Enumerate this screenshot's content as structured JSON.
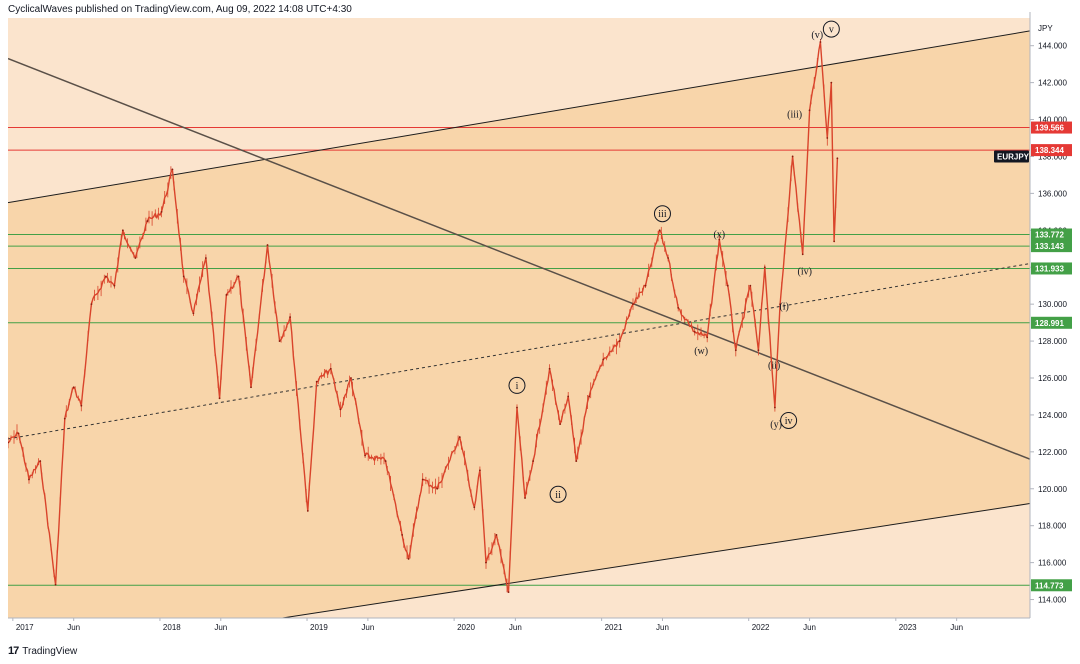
{
  "header": {
    "publisher": "CyclicalWaves published on TradingView.com, Aug 09, 2022 14:08 UTC+4:30"
  },
  "footer": {
    "brand": "TradingView",
    "logo_icon": "tradingview-logo-icon"
  },
  "chart_data": {
    "type": "line",
    "title": "",
    "symbol": "EURJPY",
    "currency_label": "JPY",
    "xlabel": "",
    "ylabel": "",
    "ylim": [
      113,
      145.5
    ],
    "x_range": [
      "2016-12-20",
      "2023-11-30"
    ],
    "x_ticks": [
      {
        "label": "2017",
        "date": "2017-01-01"
      },
      {
        "label": "Jun",
        "date": "2017-06-01"
      },
      {
        "label": "2018",
        "date": "2018-01-01"
      },
      {
        "label": "Jun",
        "date": "2018-06-01"
      },
      {
        "label": "2019",
        "date": "2019-01-01"
      },
      {
        "label": "Jun",
        "date": "2019-06-01"
      },
      {
        "label": "2020",
        "date": "2020-01-01"
      },
      {
        "label": "Jun",
        "date": "2020-06-01"
      },
      {
        "label": "2021",
        "date": "2021-01-01"
      },
      {
        "label": "Jun",
        "date": "2021-06-01"
      },
      {
        "label": "2022",
        "date": "2022-01-01"
      },
      {
        "label": "Jun",
        "date": "2022-06-01"
      },
      {
        "label": "2023",
        "date": "2023-01-01"
      },
      {
        "label": "Jun",
        "date": "2023-06-01"
      }
    ],
    "y_ticks": [
      "114.000",
      "116.000",
      "118.000",
      "120.000",
      "122.000",
      "124.000",
      "126.000",
      "128.000",
      "130.000",
      "132.000",
      "134.000",
      "136.000",
      "138.000",
      "140.000",
      "142.000",
      "144.000"
    ],
    "y_tick_values": [
      114,
      116,
      118,
      120,
      122,
      124,
      126,
      128,
      130,
      132,
      134,
      136,
      138,
      140,
      142,
      144
    ],
    "series": [
      {
        "name": "EURJPY",
        "color": "#d9442b",
        "points": [
          {
            "date": "2016-12-20",
            "y": 122.5
          },
          {
            "date": "2017-01-15",
            "y": 123.0
          },
          {
            "date": "2017-02-10",
            "y": 120.5
          },
          {
            "date": "2017-03-10",
            "y": 121.5
          },
          {
            "date": "2017-04-17",
            "y": 114.8
          },
          {
            "date": "2017-05-10",
            "y": 123.8
          },
          {
            "date": "2017-06-01",
            "y": 125.5
          },
          {
            "date": "2017-06-20",
            "y": 124.5
          },
          {
            "date": "2017-07-15",
            "y": 130.0
          },
          {
            "date": "2017-08-20",
            "y": 131.5
          },
          {
            "date": "2017-09-10",
            "y": 131.0
          },
          {
            "date": "2017-10-01",
            "y": 134.0
          },
          {
            "date": "2017-11-01",
            "y": 132.5
          },
          {
            "date": "2017-12-01",
            "y": 134.5
          },
          {
            "date": "2018-01-05",
            "y": 135.0
          },
          {
            "date": "2018-02-01",
            "y": 137.3
          },
          {
            "date": "2018-03-01",
            "y": 131.5
          },
          {
            "date": "2018-03-25",
            "y": 129.5
          },
          {
            "date": "2018-04-25",
            "y": 132.5
          },
          {
            "date": "2018-05-29",
            "y": 124.9
          },
          {
            "date": "2018-06-15",
            "y": 130.5
          },
          {
            "date": "2018-07-15",
            "y": 131.5
          },
          {
            "date": "2018-08-15",
            "y": 125.5
          },
          {
            "date": "2018-09-25",
            "y": 133.2
          },
          {
            "date": "2018-10-25",
            "y": 128.0
          },
          {
            "date": "2018-11-20",
            "y": 129.3
          },
          {
            "date": "2019-01-03",
            "y": 118.8
          },
          {
            "date": "2019-01-25",
            "y": 125.8
          },
          {
            "date": "2019-03-01",
            "y": 126.5
          },
          {
            "date": "2019-03-25",
            "y": 124.3
          },
          {
            "date": "2019-04-20",
            "y": 126.0
          },
          {
            "date": "2019-05-25",
            "y": 121.8
          },
          {
            "date": "2019-07-15",
            "y": 121.5
          },
          {
            "date": "2019-08-25",
            "y": 117.5
          },
          {
            "date": "2019-09-10",
            "y": 116.2
          },
          {
            "date": "2019-10-15",
            "y": 120.5
          },
          {
            "date": "2019-11-20",
            "y": 120.0
          },
          {
            "date": "2020-01-15",
            "y": 122.8
          },
          {
            "date": "2020-02-20",
            "y": 119.0
          },
          {
            "date": "2020-03-05",
            "y": 121.0
          },
          {
            "date": "2020-03-20",
            "y": 116.0
          },
          {
            "date": "2020-04-15",
            "y": 117.5
          },
          {
            "date": "2020-05-15",
            "y": 114.4
          },
          {
            "date": "2020-06-05",
            "y": 124.4
          },
          {
            "date": "2020-06-25",
            "y": 119.5
          },
          {
            "date": "2020-07-15",
            "y": 121.5
          },
          {
            "date": "2020-08-25",
            "y": 126.5
          },
          {
            "date": "2020-09-20",
            "y": 123.5
          },
          {
            "date": "2020-10-10",
            "y": 125.0
          },
          {
            "date": "2020-10-30",
            "y": 121.5
          },
          {
            "date": "2020-12-01",
            "y": 125.0
          },
          {
            "date": "2021-01-05",
            "y": 127.0
          },
          {
            "date": "2021-02-15",
            "y": 128.0
          },
          {
            "date": "2021-03-20",
            "y": 130.0
          },
          {
            "date": "2021-04-20",
            "y": 131.0
          },
          {
            "date": "2021-05-25",
            "y": 134.0
          },
          {
            "date": "2021-06-15",
            "y": 132.5
          },
          {
            "date": "2021-07-10",
            "y": 129.8
          },
          {
            "date": "2021-08-20",
            "y": 128.5
          },
          {
            "date": "2021-09-20",
            "y": 128.2
          },
          {
            "date": "2021-10-20",
            "y": 133.5
          },
          {
            "date": "2021-11-10",
            "y": 131.0
          },
          {
            "date": "2021-11-30",
            "y": 127.5
          },
          {
            "date": "2022-01-05",
            "y": 131.0
          },
          {
            "date": "2022-01-25",
            "y": 127.5
          },
          {
            "date": "2022-02-10",
            "y": 132.0
          },
          {
            "date": "2022-03-07",
            "y": 124.4
          },
          {
            "date": "2022-03-20",
            "y": 130.0
          },
          {
            "date": "2022-04-20",
            "y": 138.0
          },
          {
            "date": "2022-05-15",
            "y": 132.7
          },
          {
            "date": "2022-06-01",
            "y": 140.5
          },
          {
            "date": "2022-06-28",
            "y": 144.2
          },
          {
            "date": "2022-07-15",
            "y": 139.0
          },
          {
            "date": "2022-07-25",
            "y": 142.0
          },
          {
            "date": "2022-08-01",
            "y": 133.4
          },
          {
            "date": "2022-08-09",
            "y": 137.9
          }
        ]
      }
    ],
    "horizontal_levels": [
      {
        "value": 139.566,
        "label": "139.566",
        "color": "#e53935"
      },
      {
        "value": 138.344,
        "label": "138.344",
        "color": "#e53935"
      },
      {
        "value": 133.772,
        "label": "133.772",
        "color": "#43a047"
      },
      {
        "value": 133.143,
        "label": "133.143",
        "color": "#43a047"
      },
      {
        "value": 131.933,
        "label": "131.933",
        "color": "#43a047"
      },
      {
        "value": 128.991,
        "label": "128.991",
        "color": "#43a047"
      },
      {
        "value": 114.773,
        "label": "114.773",
        "color": "#43a047"
      }
    ],
    "last_price": {
      "label": "EURJPY",
      "value": 138.0,
      "color": "#131722"
    },
    "channel_lines": [
      {
        "kind": "upper-channel",
        "p1": {
          "date": "2016-12-20",
          "y": 135.5
        },
        "p2": {
          "date": "2023-11-30",
          "y": 144.8
        }
      },
      {
        "kind": "lower-channel",
        "p1": {
          "date": "2018-11-01",
          "y": 113.0
        },
        "p2": {
          "date": "2023-11-30",
          "y": 119.2
        }
      },
      {
        "kind": "mid-channel-dashed",
        "p1": {
          "date": "2016-12-20",
          "y": 122.7
        },
        "p2": {
          "date": "2023-11-30",
          "y": 132.2
        }
      },
      {
        "kind": "falling-trendline",
        "p1": {
          "date": "2016-12-20",
          "y": 143.3
        },
        "p2": {
          "date": "2023-11-30",
          "y": 121.6
        }
      }
    ],
    "wave_labels": [
      {
        "text": "v",
        "circled": true,
        "date": "2022-07-25",
        "y": 144.9
      },
      {
        "text": "(v)",
        "circled": false,
        "date": "2022-06-20",
        "y": 144.6
      },
      {
        "text": "(iii)",
        "circled": false,
        "date": "2022-04-25",
        "y": 140.3
      },
      {
        "text": "iii",
        "circled": true,
        "date": "2021-06-01",
        "y": 134.9
      },
      {
        "text": "(x)",
        "circled": false,
        "date": "2021-10-20",
        "y": 133.8
      },
      {
        "text": "(iv)",
        "circled": false,
        "date": "2022-05-20",
        "y": 131.8
      },
      {
        "text": "(i)",
        "circled": false,
        "date": "2022-03-30",
        "y": 129.9
      },
      {
        "text": "(w)",
        "circled": false,
        "date": "2021-09-05",
        "y": 127.5
      },
      {
        "text": "(ii)",
        "circled": false,
        "date": "2022-03-05",
        "y": 126.7
      },
      {
        "text": "(y)",
        "circled": false,
        "date": "2022-03-10",
        "y": 123.5
      },
      {
        "text": "iv",
        "circled": true,
        "date": "2022-04-10",
        "y": 123.7
      },
      {
        "text": "i",
        "circled": true,
        "date": "2020-06-05",
        "y": 125.6
      },
      {
        "text": "ii",
        "circled": true,
        "date": "2020-09-15",
        "y": 119.7
      }
    ],
    "colors": {
      "background": "#fbe4cd",
      "channel_fill": "#f8d5aa",
      "candle": "#d9442b",
      "channel_line": "#1c1c1c",
      "trendline": "#5a5048"
    },
    "legend": "none",
    "grid": false
  }
}
